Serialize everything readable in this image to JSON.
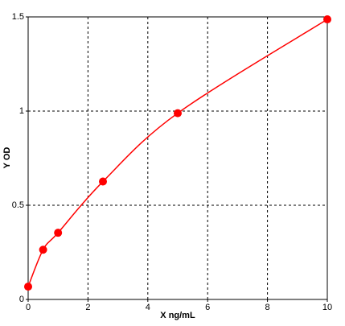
{
  "chart_data": {
    "type": "scatter",
    "x": [
      0,
      0.5,
      1,
      2.5,
      5,
      10
    ],
    "values": [
      0.068,
      0.264,
      0.354,
      0.626,
      0.989,
      1.487
    ],
    "xlabel": "X ng/mL",
    "ylabel": "Y OD",
    "xlim": [
      0,
      10
    ],
    "xticks": [
      0,
      2,
      4,
      6,
      8,
      10
    ],
    "ylim": [
      0,
      1.5
    ],
    "yticks": [
      0,
      0.5,
      1,
      1.5
    ],
    "color": "#ff0000",
    "line": true,
    "grid": true
  }
}
